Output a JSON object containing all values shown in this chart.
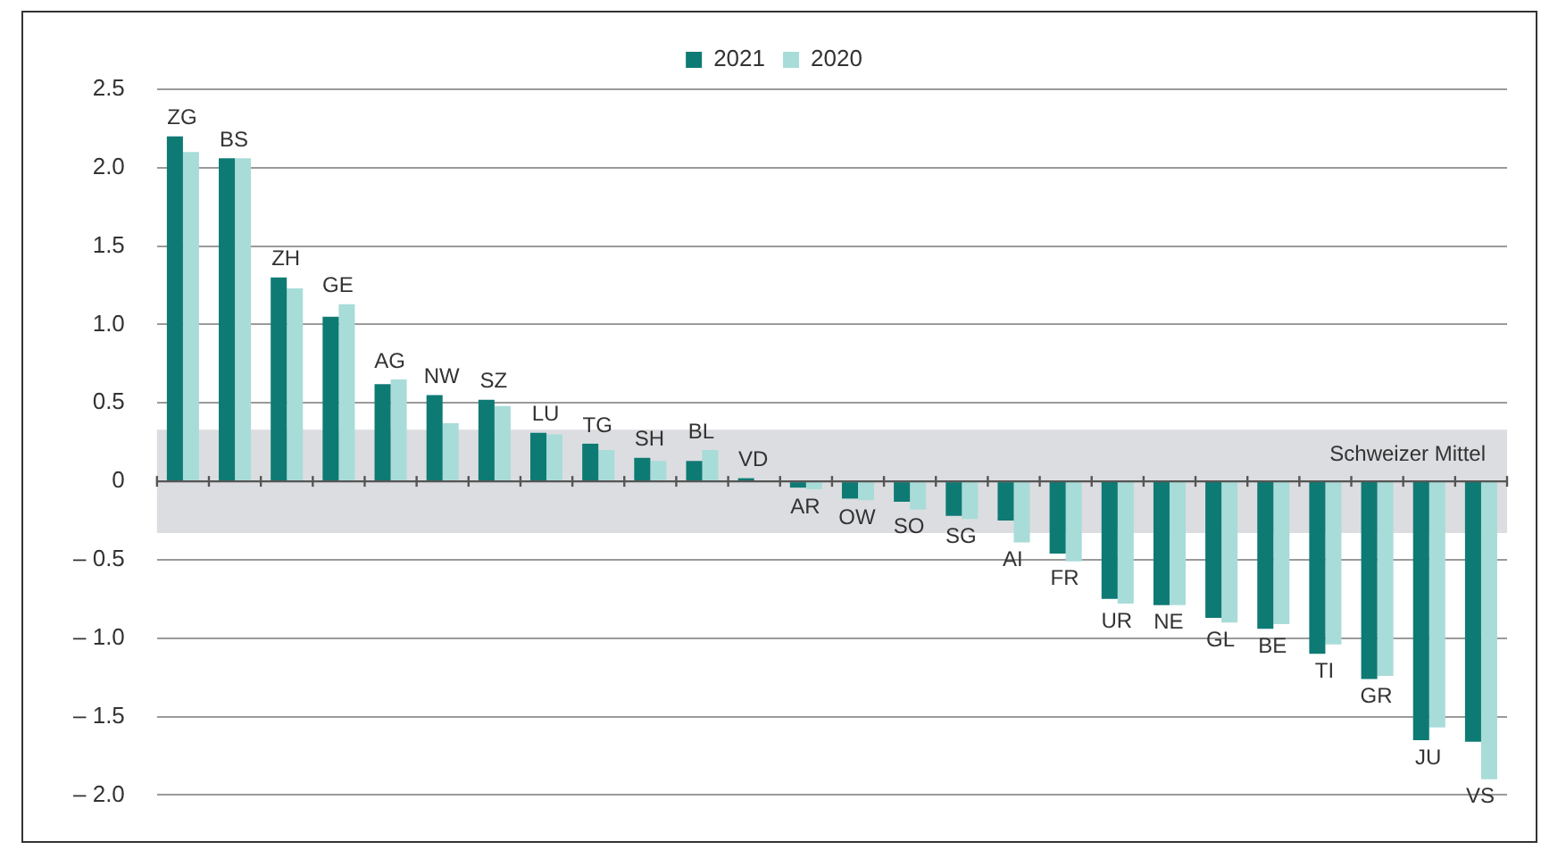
{
  "chart_data": {
    "type": "bar",
    "categories": [
      "ZG",
      "BS",
      "ZH",
      "GE",
      "AG",
      "NW",
      "SZ",
      "LU",
      "TG",
      "SH",
      "BL",
      "VD",
      "AR",
      "OW",
      "SO",
      "SG",
      "AI",
      "FR",
      "UR",
      "NE",
      "GL",
      "BE",
      "TI",
      "GR",
      "JU",
      "VS"
    ],
    "series": [
      {
        "name": "2021",
        "color": "#0e7a74",
        "values": [
          2.2,
          2.06,
          1.3,
          1.05,
          0.62,
          0.55,
          0.52,
          0.31,
          0.24,
          0.15,
          0.13,
          0.02,
          -0.04,
          -0.11,
          -0.13,
          -0.22,
          -0.25,
          -0.46,
          -0.75,
          -0.79,
          -0.87,
          -0.94,
          -1.1,
          -1.26,
          -1.65,
          -1.66
        ]
      },
      {
        "name": "2020",
        "color": "#a8dcd8",
        "values": [
          2.1,
          2.06,
          1.23,
          1.13,
          0.65,
          0.37,
          0.48,
          0.3,
          0.2,
          0.13,
          0.2,
          0,
          -0.05,
          -0.12,
          -0.18,
          -0.24,
          -0.39,
          -0.51,
          -0.78,
          -0.79,
          -0.9,
          -0.91,
          -1.04,
          -1.24,
          -1.57,
          -1.9
        ]
      }
    ],
    "ylim": [
      -2,
      2.5
    ],
    "yticks": [
      {
        "value": -2,
        "label": "– 2.0"
      },
      {
        "value": -1.5,
        "label": "– 1.5"
      },
      {
        "value": -1,
        "label": "– 1.0"
      },
      {
        "value": -0.5,
        "label": "– 0.5"
      },
      0,
      {
        "value": 0.5,
        "label": "0.5"
      },
      {
        "value": 1,
        "label": "1.0"
      },
      {
        "value": 1.5,
        "label": "1.5"
      },
      {
        "value": 2,
        "label": "2.0"
      },
      {
        "value": 2.5,
        "label": "2.5"
      }
    ],
    "bands": [
      {
        "axis": "y",
        "from": -0.33,
        "to": 0.33,
        "label": "Schweizer Mittel",
        "color": "#dcdde0"
      }
    ],
    "grid": "y",
    "legend": "top"
  }
}
